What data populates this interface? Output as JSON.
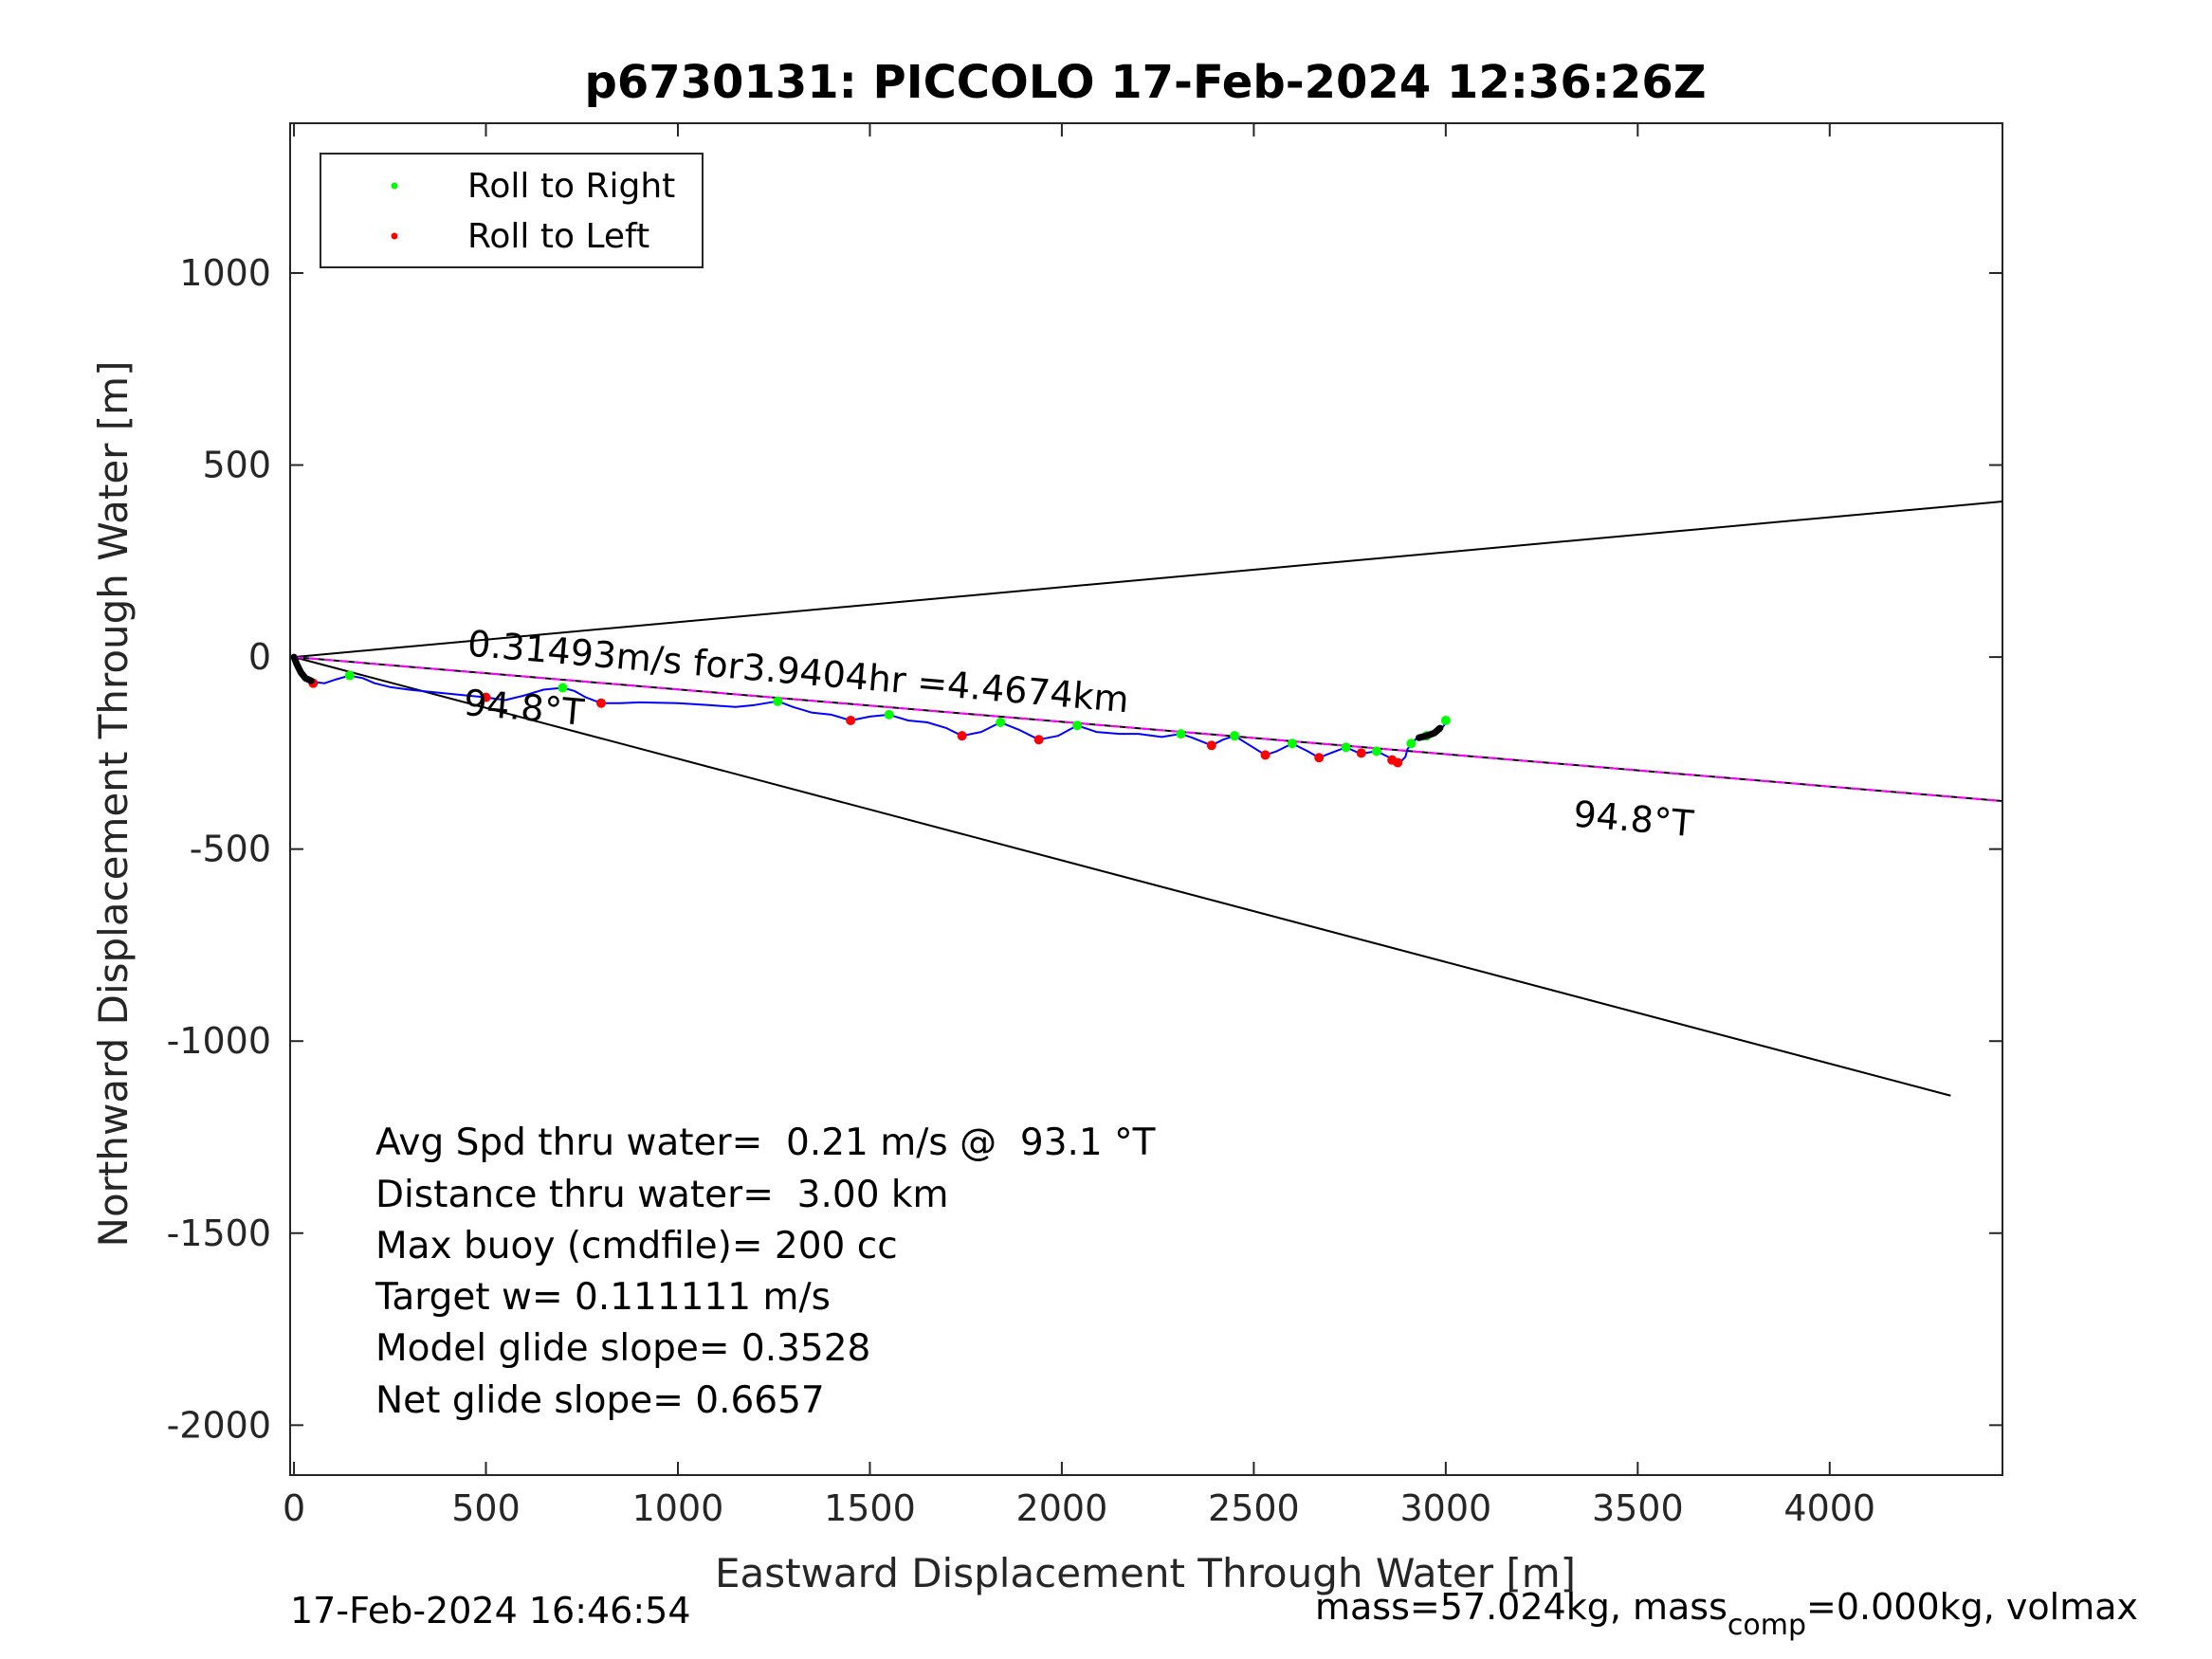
{
  "chart_data": {
    "type": "line",
    "title": "p6730131: PICCOLO 17-Feb-2024 12:36:26Z",
    "xlabel": "Eastward Displacement Through Water [m]",
    "ylabel": "Northward Displacement Through Water [m]",
    "xlim": [
      -10,
      4450
    ],
    "ylim": [
      -2130,
      1390
    ],
    "xticks": [
      0,
      500,
      1000,
      1500,
      2000,
      2500,
      3000,
      3500,
      4000
    ],
    "xtick_labels": [
      "0",
      "500",
      "1000",
      "1500",
      "2000",
      "2500",
      "3000",
      "3500",
      "4000"
    ],
    "yticks": [
      -2000,
      -1500,
      -1000,
      -500,
      0,
      500,
      1000
    ],
    "ytick_labels": [
      "-2000",
      "-1500",
      "-1000",
      "-500",
      "0",
      "500",
      "1000"
    ],
    "grid": true,
    "legend": {
      "location": "top-left",
      "entries": [
        {
          "label": "Roll to Right",
          "color": "#00ff00"
        },
        {
          "label": "Roll to Left",
          "color": "#ff0000"
        }
      ]
    },
    "lines": [
      {
        "color": "#000000",
        "points": [
          [
            0,
            0
          ],
          [
            4450,
            405
          ]
        ]
      },
      {
        "color": "#000000",
        "points": [
          [
            0,
            0
          ],
          [
            4315,
            -1142
          ]
        ]
      },
      {
        "color": "#000000",
        "points": [
          [
            0,
            0
          ],
          [
            4450,
            -375
          ]
        ]
      }
    ],
    "current_line": {
      "color": "#ff00ff",
      "dashed": true,
      "points": [
        [
          0,
          0
        ],
        [
          4450,
          -375
        ]
      ]
    },
    "series": [
      {
        "style": "track",
        "color": "#0000ff",
        "points": [
          [
            0,
            0
          ],
          [
            10,
            -25
          ],
          [
            25,
            -48
          ],
          [
            50,
            -65
          ],
          [
            80,
            -68
          ],
          [
            110,
            -58
          ],
          [
            145,
            -48
          ],
          [
            180,
            -55
          ],
          [
            210,
            -68
          ],
          [
            250,
            -78
          ],
          [
            300,
            -85
          ],
          [
            350,
            -90
          ],
          [
            400,
            -95
          ],
          [
            450,
            -100
          ],
          [
            500,
            -105
          ],
          [
            550,
            -112
          ],
          [
            600,
            -100
          ],
          [
            650,
            -85
          ],
          [
            700,
            -80
          ],
          [
            730,
            -88
          ],
          [
            760,
            -105
          ],
          [
            800,
            -120
          ],
          [
            850,
            -120
          ],
          [
            900,
            -118
          ],
          [
            1000,
            -120
          ],
          [
            1080,
            -125
          ],
          [
            1150,
            -130
          ],
          [
            1200,
            -125
          ],
          [
            1260,
            -115
          ],
          [
            1300,
            -130
          ],
          [
            1350,
            -145
          ],
          [
            1400,
            -150
          ],
          [
            1450,
            -165
          ],
          [
            1500,
            -155
          ],
          [
            1550,
            -150
          ],
          [
            1600,
            -165
          ],
          [
            1650,
            -170
          ],
          [
            1700,
            -185
          ],
          [
            1740,
            -205
          ],
          [
            1790,
            -195
          ],
          [
            1840,
            -170
          ],
          [
            1890,
            -190
          ],
          [
            1940,
            -215
          ],
          [
            1990,
            -205
          ],
          [
            2040,
            -178
          ],
          [
            2090,
            -195
          ],
          [
            2150,
            -200
          ],
          [
            2200,
            -200
          ],
          [
            2260,
            -208
          ],
          [
            2310,
            -200
          ],
          [
            2340,
            -210
          ],
          [
            2390,
            -230
          ],
          [
            2420,
            -215
          ],
          [
            2450,
            -205
          ],
          [
            2490,
            -230
          ],
          [
            2530,
            -255
          ],
          [
            2560,
            -245
          ],
          [
            2600,
            -225
          ],
          [
            2640,
            -245
          ],
          [
            2670,
            -262
          ],
          [
            2700,
            -250
          ],
          [
            2740,
            -235
          ],
          [
            2770,
            -248
          ],
          [
            2790,
            -250
          ],
          [
            2820,
            -245
          ],
          [
            2850,
            -260
          ],
          [
            2880,
            -275
          ],
          [
            2895,
            -260
          ],
          [
            2900,
            -240
          ],
          [
            2920,
            -215
          ],
          [
            2950,
            -205
          ],
          [
            2970,
            -200
          ],
          [
            2990,
            -185
          ],
          [
            3005,
            -165
          ]
        ]
      },
      {
        "style": "markers",
        "name": "Roll to Right",
        "color": "#00ff00",
        "points": [
          [
            145,
            -48
          ],
          [
            700,
            -80
          ],
          [
            1260,
            -115
          ],
          [
            1550,
            -150
          ],
          [
            1840,
            -170
          ],
          [
            2040,
            -178
          ],
          [
            2310,
            -200
          ],
          [
            2450,
            -205
          ],
          [
            2600,
            -225
          ],
          [
            2740,
            -235
          ],
          [
            2820,
            -245
          ],
          [
            2910,
            -225
          ],
          [
            2950,
            -205
          ],
          [
            3000,
            -165
          ]
        ]
      },
      {
        "style": "markers",
        "name": "Roll to Left",
        "color": "#ff0000",
        "points": [
          [
            50,
            -68
          ],
          [
            500,
            -105
          ],
          [
            800,
            -120
          ],
          [
            1450,
            -165
          ],
          [
            1740,
            -205
          ],
          [
            1940,
            -215
          ],
          [
            2390,
            -230
          ],
          [
            2530,
            -255
          ],
          [
            2670,
            -262
          ],
          [
            2780,
            -250
          ],
          [
            2860,
            -268
          ],
          [
            2875,
            -275
          ]
        ]
      },
      {
        "style": "thick",
        "color": "#000000",
        "points": [
          [
            0,
            0
          ],
          [
            8,
            -20
          ],
          [
            18,
            -40
          ],
          [
            30,
            -55
          ],
          [
            45,
            -62
          ]
        ]
      },
      {
        "style": "thick",
        "color": "#000000",
        "points": [
          [
            2930,
            -210
          ],
          [
            2950,
            -205
          ],
          [
            2970,
            -198
          ],
          [
            2985,
            -185
          ]
        ]
      }
    ],
    "annotations": [
      {
        "text": "0.31493m/s for3.9404hr =4.4674km",
        "x": 450,
        "y": 4,
        "rotate": 4.9
      },
      {
        "text": "94.8°T",
        "x": 440,
        "y": -150,
        "rotate": 4.9
      },
      {
        "text": "94.8°T",
        "x": 3330,
        "y": -440,
        "rotate": 4.9
      }
    ],
    "stats": [
      "Avg Spd thru water=  0.21 m/s @  93.1 °T",
      "Distance thru water=  3.00 km",
      "Max buoy (cmdfile)= 200 cc",
      "Target w= 0.111111 m/s",
      "Model glide slope= 0.3528",
      "Net glide slope= 0.6657"
    ]
  },
  "footer": {
    "timestamp": "17-Feb-2024 16:46:54",
    "mass_prefix": "mass=57.024kg, mass",
    "mass_subscript": "comp",
    "mass_suffix": "=0.000kg, volmax"
  }
}
